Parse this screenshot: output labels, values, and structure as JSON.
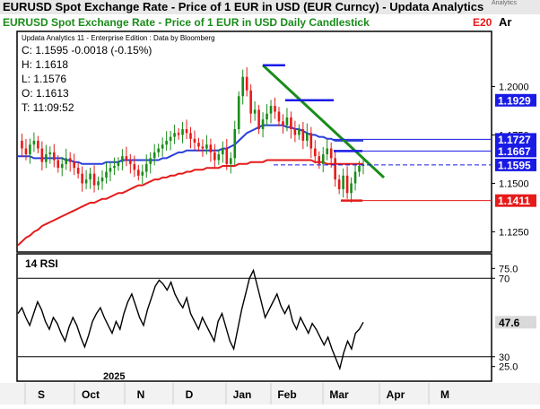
{
  "header": {
    "title": "EURUSD Spot Exchange Rate - Price of 1 EUR in USD (EUR Curncy) -  Updata Analytics",
    "subtitle": "EURUSD Spot Exchange Rate - Price of 1 EUR in USD Daily Candlestick",
    "subtitle_right_1": "E20",
    "subtitle_right_2": "Ar",
    "watermark": "Analytics"
  },
  "info": {
    "source": "Updata Analytics 11 - Enterprise Edition : Data by Bloomberg",
    "close": "C: 1.1595  -0.0018 (-0.15%)",
    "high": "H: 1.1618",
    "low": "L: 1.1576",
    "open": "O: 1.1613",
    "time": "T: 11:09:52"
  },
  "chart_data": [
    {
      "type": "candlestick",
      "title": "EURUSD Spot Exchange Rate - Price of 1 EUR in USD Daily Candlestick",
      "ylim": [
        1.115,
        1.228
      ],
      "y_ticks": [
        "1.2000",
        "1.1750",
        "1.1500",
        "1.1250"
      ],
      "x_ticks": [
        "S",
        "Oct",
        "N",
        "D",
        "Jan",
        "Feb",
        "Mar",
        "Apr",
        "M"
      ],
      "year_label": "2025",
      "price_series": [
        1.172,
        1.168,
        1.165,
        1.17,
        1.172,
        1.168,
        1.161,
        1.165,
        1.166,
        1.162,
        1.158,
        1.16,
        1.163,
        1.161,
        1.158,
        1.155,
        1.15,
        1.152,
        1.155,
        1.149,
        1.151,
        1.153,
        1.156,
        1.158,
        1.159,
        1.161,
        1.164,
        1.162,
        1.16,
        1.157,
        1.154,
        1.156,
        1.16,
        1.163,
        1.166,
        1.168,
        1.17,
        1.172,
        1.174,
        1.176,
        1.175,
        1.178,
        1.176,
        1.173,
        1.171,
        1.169,
        1.168,
        1.17,
        1.166,
        1.162,
        1.165,
        1.168,
        1.16,
        1.163,
        1.178,
        1.195,
        1.205,
        1.198,
        1.186,
        1.188,
        1.178,
        1.183,
        1.186,
        1.19,
        1.187,
        1.182,
        1.18,
        1.184,
        1.178,
        1.175,
        1.178,
        1.172,
        1.176,
        1.168,
        1.164,
        1.16,
        1.165,
        1.168,
        1.163,
        1.152,
        1.147,
        1.154,
        1.145,
        1.15,
        1.156,
        1.159,
        1.1595
      ],
      "ma_blue": [
        1.164,
        1.164,
        1.164,
        1.164,
        1.163,
        1.163,
        1.163,
        1.163,
        1.163,
        1.163,
        1.163,
        1.163,
        1.162,
        1.162,
        1.161,
        1.161,
        1.16,
        1.16,
        1.16,
        1.16,
        1.16,
        1.16,
        1.161,
        1.161,
        1.161,
        1.161,
        1.162,
        1.162,
        1.162,
        1.162,
        1.162,
        1.162,
        1.162,
        1.162,
        1.162,
        1.162,
        1.163,
        1.163,
        1.164,
        1.165,
        1.166,
        1.166,
        1.167,
        1.167,
        1.167,
        1.167,
        1.167,
        1.167,
        1.167,
        1.167,
        1.167,
        1.168,
        1.168,
        1.169,
        1.17,
        1.172,
        1.174,
        1.176,
        1.177,
        1.178,
        1.179,
        1.18,
        1.18,
        1.18,
        1.18,
        1.18,
        1.18,
        1.179,
        1.179,
        1.178,
        1.178,
        1.177,
        1.176,
        1.175,
        1.175,
        1.174,
        1.174,
        1.173,
        1.173,
        1.172,
        1.172,
        1.172,
        1.172,
        1.172,
        1.172,
        1.172,
        1.172
      ],
      "ma_red": [
        1.118,
        1.12,
        1.122,
        1.123,
        1.125,
        1.126,
        1.128,
        1.129,
        1.13,
        1.131,
        1.132,
        1.133,
        1.134,
        1.135,
        1.136,
        1.137,
        1.138,
        1.139,
        1.14,
        1.14,
        1.141,
        1.142,
        1.142,
        1.143,
        1.144,
        1.145,
        1.145,
        1.146,
        1.147,
        1.148,
        1.149,
        1.149,
        1.15,
        1.151,
        1.152,
        1.152,
        1.153,
        1.153,
        1.154,
        1.154,
        1.155,
        1.155,
        1.156,
        1.156,
        1.157,
        1.157,
        1.157,
        1.158,
        1.158,
        1.158,
        1.158,
        1.159,
        1.159,
        1.159,
        1.159,
        1.16,
        1.16,
        1.16,
        1.161,
        1.161,
        1.161,
        1.161,
        1.162,
        1.162,
        1.162,
        1.162,
        1.162,
        1.162,
        1.162,
        1.162,
        1.162,
        1.162,
        1.162,
        1.162,
        1.161,
        1.161,
        1.161,
        1.16,
        1.16,
        1.16,
        1.16,
        1.16,
        1.16,
        1.16,
        1.16,
        1.16,
        1.16
      ],
      "levels": [
        {
          "label": "1.1929",
          "value": 1.1929,
          "color": "#1a1ae6"
        },
        {
          "label": "1.1727",
          "value": 1.1727,
          "color": "#1a1ae6"
        },
        {
          "label": "1.1667",
          "value": 1.1667,
          "color": "#1a1ae6"
        },
        {
          "label": "1.1595",
          "value": 1.1595,
          "color": "#1a1ae6"
        },
        {
          "label": "1.1411",
          "value": 1.1411,
          "color": "#e61a1a"
        }
      ],
      "trendline_color": "#1a8c1a",
      "colors": {
        "up": "#1a8c1a",
        "down": "#e61a1a",
        "ma_blue": "#2a3fd8",
        "ma_red": "#e61a1a",
        "level_blue": "#1a1ae6"
      }
    },
    {
      "type": "line",
      "title": "14 RSI",
      "ylim": [
        18,
        82
      ],
      "y_ticks": [
        "75.0",
        "70",
        "30",
        "25.0"
      ],
      "current_label": "47.6",
      "current_value": 47.6,
      "values": [
        52,
        55,
        50,
        46,
        52,
        58,
        54,
        48,
        44,
        50,
        47,
        42,
        38,
        45,
        50,
        46,
        40,
        35,
        41,
        48,
        52,
        55,
        50,
        46,
        42,
        48,
        44,
        52,
        58,
        62,
        56,
        50,
        46,
        54,
        60,
        66,
        69,
        67,
        64,
        68,
        62,
        58,
        55,
        60,
        52,
        48,
        44,
        50,
        46,
        42,
        38,
        48,
        52,
        45,
        38,
        34,
        44,
        54,
        62,
        70,
        74,
        66,
        58,
        50,
        54,
        58,
        62,
        56,
        52,
        56,
        48,
        44,
        50,
        46,
        42,
        47,
        44,
        40,
        36,
        40,
        34,
        29,
        24,
        32,
        38,
        34,
        42,
        44,
        47.6
      ]
    }
  ]
}
